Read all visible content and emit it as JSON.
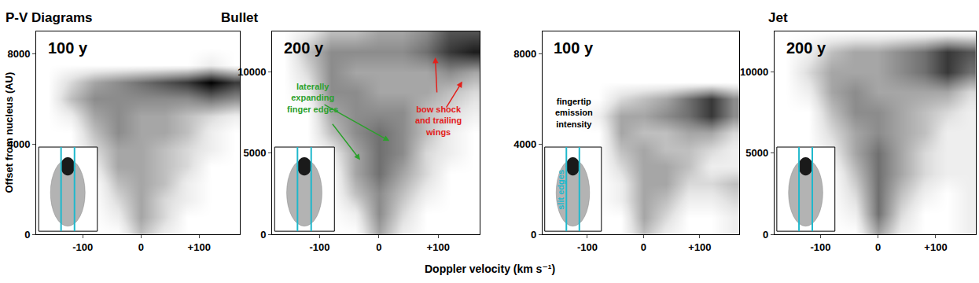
{
  "title": "P-V Diagrams",
  "xlabel": "Doppler velocity (km s⁻¹)",
  "ylabel": "Offset from nucleus (AU)",
  "chart_data": [
    {
      "type": "heatmap",
      "group": "Bullet",
      "label": "100 y",
      "grid": false,
      "xlim": [
        -180,
        170
      ],
      "ylim": [
        0,
        9000
      ],
      "zlim": [
        0,
        10
      ],
      "xticks": [
        -100,
        0,
        {
          "value": 100,
          "label": "+100"
        }
      ],
      "yticks": [
        0,
        4000,
        8000
      ],
      "x": [
        -160,
        -120,
        -80,
        -40,
        0,
        40,
        80,
        120,
        160
      ],
      "y": [
        0,
        750,
        1500,
        2250,
        3000,
        3750,
        4500,
        5250,
        6000,
        6750,
        7500,
        8250
      ],
      "z": [
        [
          0,
          0,
          0,
          0,
          3,
          1,
          0,
          0,
          0
        ],
        [
          0,
          0,
          0,
          1,
          4,
          2,
          0,
          0,
          0
        ],
        [
          0,
          0,
          0,
          2,
          4,
          2,
          1,
          0,
          0
        ],
        [
          0,
          0,
          0,
          3,
          4,
          3,
          1,
          0,
          0
        ],
        [
          0,
          0,
          1,
          4,
          4,
          3,
          2,
          0,
          0
        ],
        [
          0,
          0,
          2,
          4,
          4,
          3,
          2,
          1,
          0
        ],
        [
          0,
          0,
          3,
          5,
          4,
          4,
          3,
          1,
          0
        ],
        [
          0,
          1,
          4,
          5,
          4,
          4,
          3,
          2,
          1
        ],
        [
          0,
          3,
          5,
          5,
          5,
          5,
          5,
          6,
          5
        ],
        [
          0,
          2,
          4,
          5,
          6,
          7,
          8,
          10,
          8
        ],
        [
          0,
          0,
          0,
          0,
          0,
          0,
          0,
          1,
          0
        ],
        [
          0,
          0,
          0,
          0,
          0,
          0,
          0,
          0,
          0
        ]
      ],
      "annotations": []
    },
    {
      "type": "heatmap",
      "group": "Bullet",
      "label": "200 y",
      "grid": false,
      "xlim": [
        -180,
        170
      ],
      "ylim": [
        0,
        12500
      ],
      "zlim": [
        0,
        10
      ],
      "xticks": [
        -100,
        0,
        {
          "value": 100,
          "label": "+100"
        }
      ],
      "yticks": [
        0,
        5000,
        10000
      ],
      "x": [
        -160,
        -120,
        -80,
        -40,
        0,
        40,
        80,
        120,
        160
      ],
      "y": [
        0,
        1250,
        2500,
        3750,
        5000,
        6250,
        7500,
        8750,
        10000,
        11250,
        12500,
        13750
      ],
      "z": [
        [
          0,
          0,
          0,
          0,
          4,
          1,
          0,
          0,
          0
        ],
        [
          0,
          0,
          0,
          1,
          5,
          2,
          0,
          0,
          0
        ],
        [
          0,
          0,
          0,
          3,
          5,
          3,
          1,
          0,
          0
        ],
        [
          0,
          0,
          0,
          4,
          6,
          4,
          2,
          0,
          0
        ],
        [
          0,
          0,
          1,
          4,
          6,
          5,
          2,
          1,
          0
        ],
        [
          0,
          0,
          3,
          5,
          6,
          5,
          3,
          1,
          0
        ],
        [
          0,
          0,
          4,
          5,
          5,
          5,
          3,
          2,
          1
        ],
        [
          0,
          1,
          5,
          5,
          4,
          4,
          4,
          3,
          2
        ],
        [
          0,
          2,
          5,
          4,
          4,
          4,
          4,
          5,
          4
        ],
        [
          0,
          3,
          5,
          5,
          5,
          5,
          6,
          8,
          9
        ],
        [
          0,
          1,
          3,
          3,
          4,
          4,
          5,
          7,
          7
        ],
        [
          0,
          0,
          0,
          0,
          0,
          0,
          0,
          0,
          0
        ]
      ],
      "annotations": [
        {
          "text": [
            "laterally",
            "expanding",
            "finger edges"
          ],
          "color": "#2ca02c"
        },
        {
          "text": [
            "bow shock",
            "and trailing",
            "wings"
          ],
          "color": "#e3201b"
        }
      ]
    },
    {
      "type": "heatmap",
      "group": "Jet",
      "label": "100 y",
      "grid": false,
      "xlim": [
        -180,
        170
      ],
      "ylim": [
        0,
        9000
      ],
      "zlim": [
        0,
        10
      ],
      "xticks": [
        -100,
        0,
        {
          "value": 100,
          "label": "+100"
        }
      ],
      "yticks": [
        0,
        4000,
        8000
      ],
      "x": [
        -160,
        -120,
        -80,
        -40,
        0,
        40,
        80,
        120,
        160
      ],
      "y": [
        0,
        750,
        1500,
        2250,
        3000,
        3750,
        4500,
        5250,
        6000,
        6750,
        7500,
        8250
      ],
      "z": [
        [
          0,
          0,
          0,
          0,
          3,
          1,
          0,
          0,
          1
        ],
        [
          0,
          0,
          0,
          0,
          4,
          2,
          0,
          0,
          1
        ],
        [
          0,
          0,
          0,
          1,
          4,
          3,
          1,
          1,
          2
        ],
        [
          0,
          0,
          0,
          1,
          4,
          4,
          2,
          2,
          3
        ],
        [
          0,
          0,
          0,
          2,
          4,
          4,
          3,
          1,
          1
        ],
        [
          0,
          0,
          0,
          3,
          4,
          3,
          3,
          2,
          1
        ],
        [
          0,
          0,
          0,
          4,
          3,
          3,
          4,
          4,
          2
        ],
        [
          0,
          0,
          1,
          4,
          4,
          5,
          6,
          8,
          5
        ],
        [
          0,
          0,
          0,
          2,
          3,
          4,
          6,
          8,
          5
        ],
        [
          0,
          0,
          0,
          0,
          0,
          0,
          0,
          0,
          0
        ],
        [
          0,
          0,
          0,
          0,
          0,
          0,
          0,
          0,
          0
        ],
        [
          0,
          0,
          0,
          0,
          0,
          0,
          0,
          0,
          0
        ]
      ],
      "annotations": [
        {
          "text": [
            "fingertip",
            "emission",
            "intensity"
          ],
          "color": "#000000"
        },
        {
          "text": [
            "slit edges"
          ],
          "color": "#1fb8cc"
        }
      ]
    },
    {
      "type": "heatmap",
      "group": "Jet",
      "label": "200 y",
      "grid": false,
      "xlim": [
        -180,
        170
      ],
      "ylim": [
        0,
        12500
      ],
      "zlim": [
        0,
        10
      ],
      "xticks": [
        -100,
        0,
        {
          "value": 100,
          "label": "+100"
        }
      ],
      "yticks": [
        0,
        5000,
        10000
      ],
      "x": [
        -160,
        -120,
        -80,
        -40,
        0,
        40,
        80,
        120,
        160
      ],
      "y": [
        0,
        1250,
        2500,
        3750,
        5000,
        6250,
        7500,
        8750,
        10000,
        11250,
        12500,
        13750
      ],
      "z": [
        [
          0,
          0,
          0,
          0,
          4,
          1,
          0,
          0,
          1
        ],
        [
          0,
          0,
          0,
          1,
          6,
          2,
          0,
          0,
          1
        ],
        [
          0,
          0,
          0,
          2,
          6,
          3,
          1,
          0,
          1
        ],
        [
          0,
          0,
          0,
          3,
          6,
          4,
          2,
          1,
          1
        ],
        [
          0,
          0,
          1,
          4,
          6,
          4,
          2,
          1,
          1
        ],
        [
          0,
          0,
          2,
          4,
          5,
          4,
          3,
          1,
          1
        ],
        [
          0,
          0,
          3,
          5,
          5,
          4,
          3,
          2,
          1
        ],
        [
          0,
          1,
          4,
          5,
          4,
          4,
          4,
          4,
          2
        ],
        [
          0,
          2,
          4,
          4,
          4,
          5,
          6,
          8,
          6
        ],
        [
          0,
          1,
          3,
          4,
          4,
          5,
          6,
          8,
          7
        ],
        [
          0,
          0,
          0,
          0,
          0,
          0,
          0,
          0,
          0
        ],
        [
          0,
          0,
          0,
          0,
          0,
          0,
          0,
          0,
          0
        ]
      ],
      "annotations": []
    }
  ]
}
